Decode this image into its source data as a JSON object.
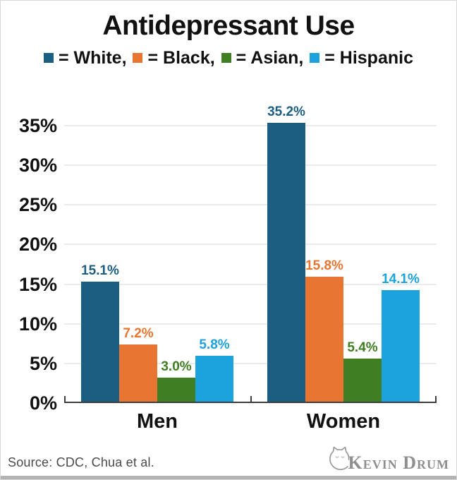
{
  "title": "Antidepressant Use",
  "legend": {
    "items": [
      {
        "color": "#1b5e82",
        "label": "= White, "
      },
      {
        "color": "#e87632",
        "label": "= Black, "
      },
      {
        "color": "#3f7e23",
        "label": "= Asian, "
      },
      {
        "color": "#1ca2dd",
        "label": "= Hispanic"
      }
    ]
  },
  "chart_data": {
    "type": "bar",
    "categories": [
      "Men",
      "Women"
    ],
    "series": [
      {
        "name": "White",
        "color": "#1b5e82",
        "values": [
          15.1,
          35.2
        ],
        "labels": [
          "15.1%",
          "35.2%"
        ]
      },
      {
        "name": "Black",
        "color": "#e87632",
        "values": [
          7.2,
          15.8
        ],
        "labels": [
          "7.2%",
          "15.8%"
        ]
      },
      {
        "name": "Asian",
        "color": "#3f7e23",
        "values": [
          3.0,
          5.4
        ],
        "labels": [
          "3.0%",
          "5.4%"
        ]
      },
      {
        "name": "Hispanic",
        "color": "#1ca2dd",
        "values": [
          5.8,
          14.1
        ],
        "labels": [
          "5.8%",
          "14.1%"
        ]
      }
    ],
    "yticks": [
      {
        "v": 0,
        "label": "0%"
      },
      {
        "v": 5,
        "label": "5%"
      },
      {
        "v": 10,
        "label": "10%"
      },
      {
        "v": 15,
        "label": "15%"
      },
      {
        "v": 20,
        "label": "20%"
      },
      {
        "v": 25,
        "label": "25%"
      },
      {
        "v": 30,
        "label": "30%"
      },
      {
        "v": 35,
        "label": "35%"
      }
    ],
    "ylim": [
      0,
      35
    ],
    "grid": "horizontal",
    "legend_position": "top",
    "title": "Antidepressant Use"
  },
  "footer": {
    "source": "Source: CDC, Chua et al.",
    "logo_text": "Kevin Drum",
    "logo_icon": "cat-icon"
  },
  "colors": {
    "axis": "#3d3d3d",
    "gridline": "#ebebeb",
    "text": "#111111",
    "source_text": "#4a4a4a",
    "logo_gray": "#8f8f8f",
    "bottom_strip": "#b3b3b3"
  }
}
